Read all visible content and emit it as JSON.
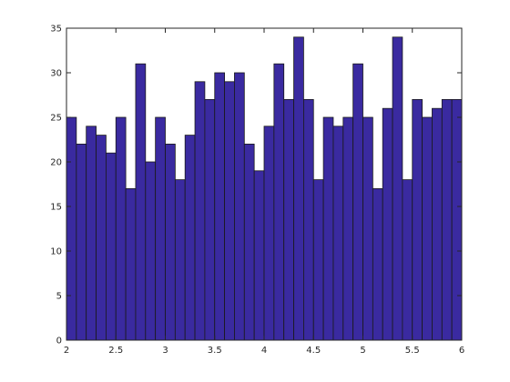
{
  "chart_data": {
    "type": "bar",
    "title": "",
    "xlabel": "",
    "ylabel": "",
    "xlim": [
      2,
      6
    ],
    "ylim": [
      0,
      35
    ],
    "grid": false,
    "bin_edges": [
      2,
      2.1,
      2.2,
      2.3,
      2.4,
      2.5,
      2.6,
      2.7,
      2.8,
      2.9,
      3,
      3.1,
      3.2,
      3.3,
      3.4,
      3.5,
      3.6,
      3.7,
      3.8,
      3.9,
      4,
      4.1,
      4.2,
      4.3,
      4.4,
      4.5,
      4.6,
      4.7,
      4.8,
      4.9,
      5,
      5.1,
      5.2,
      5.3,
      5.4,
      5.5,
      5.6,
      5.7,
      5.8,
      5.9,
      6
    ],
    "values": [
      25,
      22,
      24,
      23,
      21,
      25,
      17,
      31,
      20,
      25,
      22,
      18,
      23,
      29,
      27,
      30,
      29,
      30,
      22,
      19,
      24,
      31,
      27,
      34,
      27,
      18,
      25,
      24,
      25,
      31,
      25,
      17,
      26,
      34,
      18,
      27,
      25,
      26,
      27,
      27
    ],
    "xticks": [
      2,
      2.5,
      3,
      3.5,
      4,
      4.5,
      5,
      5.5,
      6
    ],
    "xtick_labels": [
      "2",
      "2.5",
      "3",
      "3.5",
      "4",
      "4.5",
      "5",
      "5.5",
      "6"
    ],
    "yticks": [
      0,
      5,
      10,
      15,
      20,
      25,
      30,
      35
    ],
    "ytick_labels": [
      "0",
      "5",
      "10",
      "15",
      "20",
      "25",
      "30",
      "35"
    ],
    "colors": {
      "bar_fill": "#3a2aa0",
      "bar_edge": "#1a1a1a",
      "axes": "#262626"
    }
  }
}
